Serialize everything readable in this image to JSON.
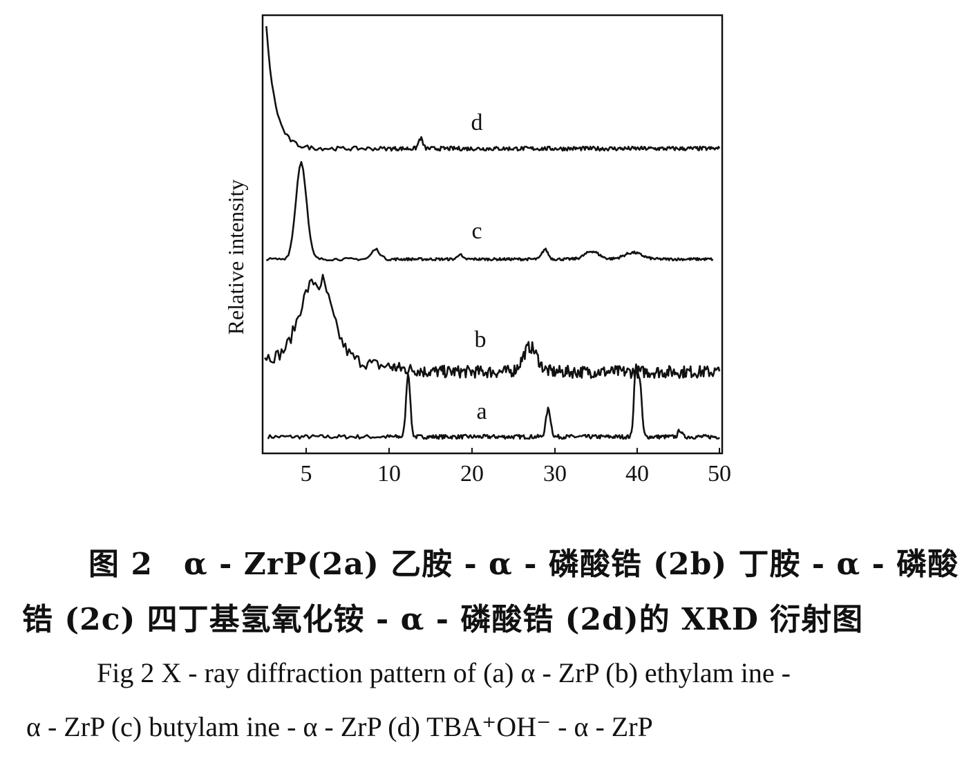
{
  "chart_data": {
    "type": "line",
    "ylabel": "Relative intensity",
    "xlabel": "",
    "x_ticks": [
      "5",
      "10",
      "20",
      "30",
      "40",
      "50"
    ],
    "x_tick_values": [
      5,
      10,
      20,
      30,
      40,
      50
    ],
    "xlim": [
      2.5,
      50
    ],
    "y_ticks": "none",
    "stacked_offset": true,
    "series": [
      {
        "name": "a",
        "peaks": [
          {
            "x": 12.3,
            "height": 0.92,
            "width": 0.35
          },
          {
            "x": 29.2,
            "height": 0.4,
            "width": 0.4
          },
          {
            "x": 39.8,
            "height": 0.9,
            "width": 0.3
          },
          {
            "x": 40.3,
            "height": 0.8,
            "width": 0.35
          },
          {
            "x": 45.2,
            "height": 0.1,
            "width": 0.3
          }
        ],
        "baseline": 0.0,
        "noise": 0.03
      },
      {
        "name": "b",
        "peaks": [
          {
            "x": 5.5,
            "height": 1.35,
            "width": 1.3
          },
          {
            "x": 27.0,
            "height": 0.4,
            "width": 1.2
          }
        ],
        "baseline": 0.0,
        "noise": 0.1
      },
      {
        "name": "c",
        "peaks": [
          {
            "x": 4.7,
            "height": 1.48,
            "width": 0.45
          },
          {
            "x": 9.2,
            "height": 0.15,
            "width": 0.35
          },
          {
            "x": 18.5,
            "height": 0.08,
            "width": 0.35
          },
          {
            "x": 28.8,
            "height": 0.15,
            "width": 0.5
          },
          {
            "x": 34.5,
            "height": 0.12,
            "width": 1.2
          },
          {
            "x": 39.5,
            "height": 0.1,
            "width": 1.5
          }
        ],
        "baseline": 0.0,
        "noise": 0.02
      },
      {
        "name": "d",
        "peaks": [
          {
            "x": 13.8,
            "height": 0.15,
            "width": 0.35
          }
        ],
        "low_angle_rise": {
          "start_x": 2.6,
          "height": 1.75,
          "decay": 0.55
        },
        "baseline": 0.0,
        "noise": 0.03
      }
    ]
  },
  "caption": {
    "cn_line1": "图 2　α - ZrP(2a) 乙胺 - α - 磷酸锆 (2b) 丁胺 - α - 磷酸",
    "cn_line2": "锆 (2c) 四丁基氢氧化铵 - α - 磷酸锆 (2d)的 XRD 衍射图",
    "en_line1": "Fig 2 X - ray diffraction pattern of (a) α - ZrP (b) ethylam ine -",
    "en_line2": "α - ZrP (c) butylam ine - α - ZrP (d) TBA⁺OH⁻ - α - ZrP"
  }
}
